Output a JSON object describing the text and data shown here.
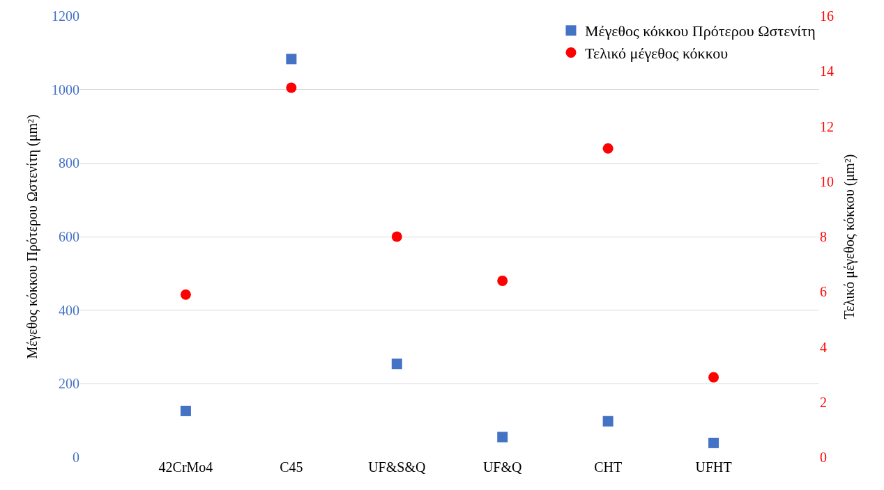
{
  "chart_data": {
    "type": "scatter",
    "categories": [
      "42CrMo4",
      "C45",
      "UF&S&Q",
      "UF&Q",
      "CHT",
      "UFHT"
    ],
    "ylabel": "Μέγεθος κόκκου Πρότερου Ωστενίτη (μm²)",
    "y2label": "Τελικό μέγεθος κόκκου (μm²)",
    "ylim": [
      0,
      1200
    ],
    "yticks": [
      0,
      200,
      400,
      600,
      800,
      1000,
      1200
    ],
    "y2lim": [
      0,
      16
    ],
    "y2ticks": [
      0,
      2,
      4,
      6,
      8,
      10,
      12,
      14,
      16
    ],
    "grid": "y",
    "legend": "top right",
    "series": [
      {
        "name": "Μέγεθος κόκκου Πρότερου Ωστενίτη",
        "color": "#4472c4",
        "marker": "square",
        "values": [
          126,
          1083,
          254,
          55,
          98,
          39
        ]
      },
      {
        "name": "Τελικό μέγεθος κόκκου",
        "color": "#ff0000",
        "marker": "circle",
        "axis": "y2",
        "values": [
          5.9,
          13.4,
          8.0,
          6.4,
          11.2,
          2.9
        ]
      }
    ]
  }
}
